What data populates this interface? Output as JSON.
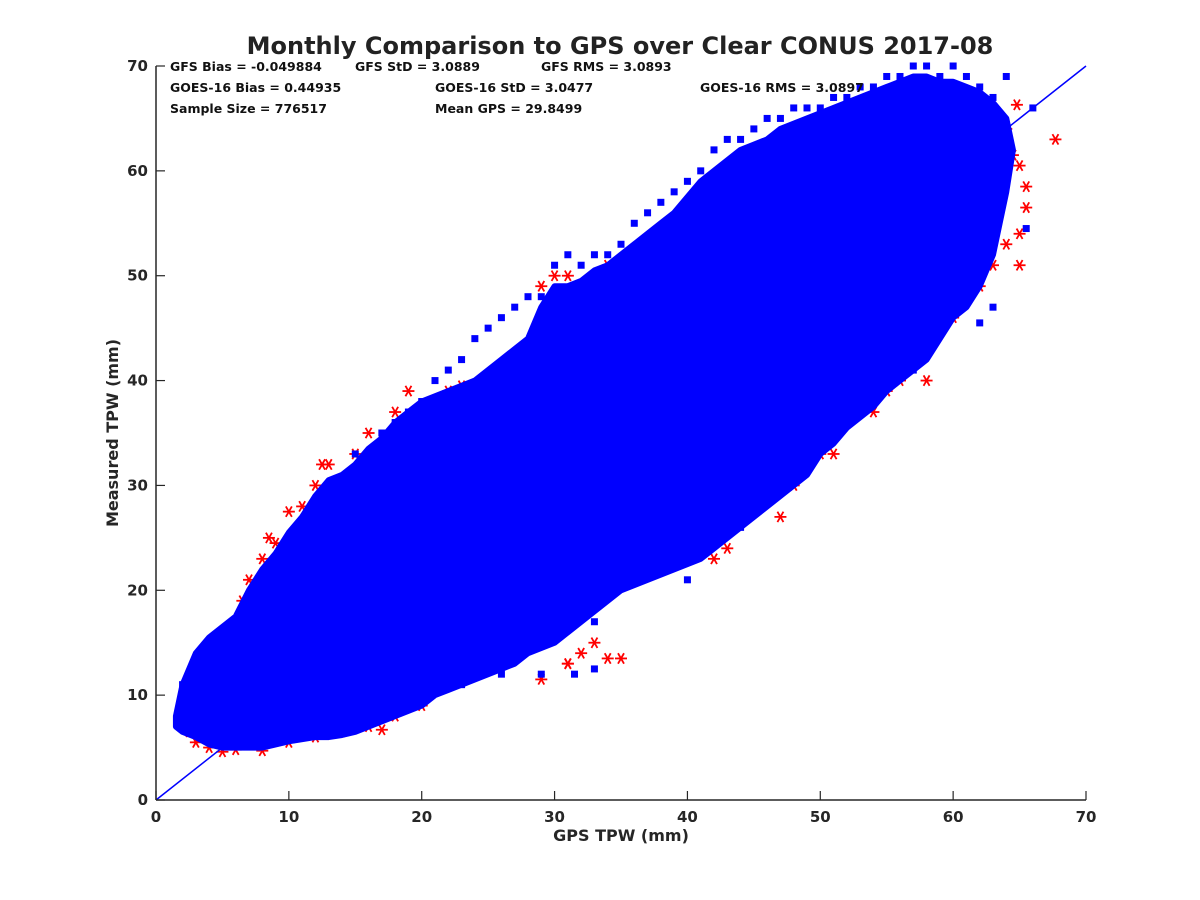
{
  "chart_data": {
    "type": "scatter",
    "title": "Monthly Comparison to GPS over Clear CONUS 2017-08",
    "xlabel": "GPS TPW (mm)",
    "ylabel": "Measured TPW (mm)",
    "xlim": [
      0,
      70
    ],
    "ylim": [
      0,
      70
    ],
    "xticks": [
      "0",
      "10",
      "20",
      "30",
      "40",
      "50",
      "60",
      "70"
    ],
    "yticks": [
      "0",
      "10",
      "20",
      "30",
      "40",
      "50",
      "60",
      "70"
    ],
    "grid": false,
    "reference_line": {
      "x": [
        0,
        70
      ],
      "y": [
        0,
        70
      ],
      "color": "#0000ff"
    },
    "stats": {
      "row1": [
        "GFS Bias = -0.049884",
        "GFS StD = 3.0889",
        "GFS RMS = 3.0893"
      ],
      "row2": [
        "GOES-16 Bias = 0.44935",
        "GOES-16 StD = 3.0477",
        "GOES-16 RMS = 3.0897"
      ],
      "row3": [
        "Sample Size = 776517",
        "Mean GPS = 29.8499"
      ]
    },
    "series": [
      {
        "marker": "asterisk",
        "color": "#ff0000",
        "points": [
          [
            2,
            7
          ],
          [
            2.5,
            6.5
          ],
          [
            3,
            5.5
          ],
          [
            4,
            5
          ],
          [
            5,
            4.6
          ],
          [
            6,
            4.8
          ],
          [
            8,
            4.7
          ],
          [
            10,
            5.5
          ],
          [
            12,
            6
          ],
          [
            14,
            6.5
          ],
          [
            16,
            7
          ],
          [
            17,
            6.7
          ],
          [
            18,
            8
          ],
          [
            20,
            9
          ],
          [
            22,
            11
          ],
          [
            24,
            12
          ],
          [
            26,
            13
          ],
          [
            28,
            14.5
          ],
          [
            30,
            16
          ],
          [
            31,
            13
          ],
          [
            32,
            14
          ],
          [
            33,
            15
          ],
          [
            34,
            13.5
          ],
          [
            35,
            13.5
          ],
          [
            29,
            11.5
          ],
          [
            31,
            13
          ],
          [
            29,
            21
          ],
          [
            31,
            22
          ],
          [
            33,
            23
          ],
          [
            35,
            24
          ],
          [
            36,
            21
          ],
          [
            38,
            23
          ],
          [
            40,
            24
          ],
          [
            41,
            26
          ],
          [
            42,
            27
          ],
          [
            42,
            23
          ],
          [
            43,
            24
          ],
          [
            44,
            28
          ],
          [
            45,
            28
          ],
          [
            46,
            29
          ],
          [
            47,
            27
          ],
          [
            48,
            30
          ],
          [
            49,
            32
          ],
          [
            50,
            33
          ],
          [
            51,
            33
          ],
          [
            52,
            36
          ],
          [
            53,
            37
          ],
          [
            54,
            37
          ],
          [
            55,
            39
          ],
          [
            56,
            40
          ],
          [
            57,
            42
          ],
          [
            58,
            40
          ],
          [
            59,
            45
          ],
          [
            60,
            46
          ],
          [
            61,
            48
          ],
          [
            62,
            49
          ],
          [
            63,
            51
          ],
          [
            64,
            53
          ],
          [
            65,
            54
          ],
          [
            65,
            51
          ],
          [
            65.5,
            56.5
          ],
          [
            65.5,
            58.5
          ],
          [
            65,
            60.5
          ],
          [
            64.5,
            61.5
          ],
          [
            64,
            64
          ],
          [
            63,
            66
          ],
          [
            62,
            66
          ],
          [
            64.8,
            66.3
          ],
          [
            67.7,
            63
          ],
          [
            2,
            9
          ],
          [
            3,
            12
          ],
          [
            4,
            14
          ],
          [
            5,
            15
          ],
          [
            6,
            17
          ],
          [
            6.5,
            19
          ],
          [
            7,
            21
          ],
          [
            8,
            23
          ],
          [
            8.5,
            25
          ],
          [
            9,
            24.5
          ],
          [
            10,
            27.5
          ],
          [
            11,
            28
          ],
          [
            12,
            30
          ],
          [
            12.5,
            32
          ],
          [
            13,
            32
          ],
          [
            13,
            29.5
          ],
          [
            14,
            30
          ],
          [
            15,
            33
          ],
          [
            16,
            35
          ],
          [
            18,
            37
          ],
          [
            19,
            39
          ],
          [
            20,
            37
          ],
          [
            21,
            38
          ],
          [
            22,
            39
          ],
          [
            23,
            39.5
          ],
          [
            24,
            39.5
          ],
          [
            25,
            40
          ],
          [
            26,
            41
          ],
          [
            27,
            41.5
          ],
          [
            28,
            43
          ],
          [
            29,
            49
          ],
          [
            30,
            50
          ],
          [
            31,
            50
          ],
          [
            32,
            48
          ],
          [
            33,
            49
          ],
          [
            34,
            51
          ],
          [
            35,
            50
          ],
          [
            36,
            51
          ],
          [
            37,
            49
          ]
        ]
      },
      {
        "marker": "square",
        "color": "#0000ff",
        "points": [
          [
            2,
            11
          ],
          [
            3,
            13
          ],
          [
            7,
            15
          ],
          [
            10,
            24
          ],
          [
            11,
            26
          ],
          [
            12,
            28
          ],
          [
            13,
            26
          ],
          [
            14,
            30
          ],
          [
            15,
            33
          ],
          [
            16,
            33
          ],
          [
            17,
            35
          ],
          [
            18,
            36
          ],
          [
            19,
            37
          ],
          [
            20,
            38
          ],
          [
            21,
            40
          ],
          [
            21.5,
            37
          ],
          [
            22,
            41
          ],
          [
            23,
            42
          ],
          [
            24,
            44
          ],
          [
            25,
            45
          ],
          [
            26,
            46
          ],
          [
            27,
            47
          ],
          [
            28,
            48
          ],
          [
            29,
            48
          ],
          [
            30,
            51
          ],
          [
            31,
            52
          ],
          [
            32,
            51
          ],
          [
            33,
            52
          ],
          [
            34,
            52
          ],
          [
            35,
            53
          ],
          [
            36,
            55
          ],
          [
            37,
            56
          ],
          [
            38,
            57
          ],
          [
            39,
            58
          ],
          [
            40,
            59
          ],
          [
            41,
            60
          ],
          [
            42,
            62
          ],
          [
            43,
            63
          ],
          [
            44,
            63
          ],
          [
            45,
            64
          ],
          [
            46,
            65
          ],
          [
            47,
            65
          ],
          [
            48,
            66
          ],
          [
            49,
            66
          ],
          [
            50,
            66
          ],
          [
            51,
            67
          ],
          [
            52,
            67
          ],
          [
            53,
            68
          ],
          [
            54,
            68
          ],
          [
            55,
            69
          ],
          [
            56,
            69
          ],
          [
            57,
            70
          ],
          [
            58,
            70
          ],
          [
            59,
            69
          ],
          [
            60,
            70
          ],
          [
            61,
            69
          ],
          [
            62,
            68
          ],
          [
            63,
            67
          ],
          [
            64,
            69
          ],
          [
            66,
            66
          ],
          [
            65.5,
            54.5
          ],
          [
            63,
            47
          ],
          [
            62,
            45.5
          ],
          [
            57,
            41
          ],
          [
            50,
            35
          ],
          [
            48,
            32
          ],
          [
            44,
            26
          ],
          [
            40,
            21
          ],
          [
            39,
            29
          ],
          [
            37,
            28
          ],
          [
            35,
            21
          ],
          [
            33,
            17
          ],
          [
            33,
            12.5
          ],
          [
            31.5,
            12
          ],
          [
            29,
            12
          ],
          [
            26,
            12
          ],
          [
            23,
            11
          ],
          [
            20,
            10
          ],
          [
            18,
            8.5
          ],
          [
            16,
            8
          ],
          [
            14,
            8
          ],
          [
            12,
            7
          ],
          [
            10,
            7
          ],
          [
            8,
            6
          ],
          [
            6,
            7
          ],
          [
            4,
            8
          ],
          [
            30,
            20
          ],
          [
            26,
            16
          ]
        ]
      }
    ],
    "envelope": {
      "color": "#0000ff",
      "upper": [
        [
          1.5,
          8
        ],
        [
          2,
          11
        ],
        [
          3,
          14
        ],
        [
          4,
          15.5
        ],
        [
          6,
          17.5
        ],
        [
          7,
          20
        ],
        [
          8,
          22
        ],
        [
          9,
          23.5
        ],
        [
          10,
          25.5
        ],
        [
          11,
          27
        ],
        [
          12,
          29
        ],
        [
          13,
          30.5
        ],
        [
          14,
          31
        ],
        [
          15,
          32
        ],
        [
          16,
          33.5
        ],
        [
          17,
          34.5
        ],
        [
          18,
          36
        ],
        [
          19,
          37
        ],
        [
          20,
          38
        ],
        [
          21,
          38.5
        ],
        [
          22,
          39
        ],
        [
          23,
          39.5
        ],
        [
          24,
          40
        ],
        [
          25,
          41
        ],
        [
          26,
          42
        ],
        [
          27,
          43
        ],
        [
          28,
          44
        ],
        [
          29,
          47
        ],
        [
          30,
          49
        ],
        [
          31,
          49
        ],
        [
          32,
          49.5
        ],
        [
          33,
          50.5
        ],
        [
          34,
          51
        ],
        [
          35,
          52
        ],
        [
          36,
          53
        ],
        [
          37,
          54
        ],
        [
          38,
          55
        ],
        [
          39,
          56
        ],
        [
          40,
          57.5
        ],
        [
          41,
          59
        ],
        [
          42,
          60
        ],
        [
          43,
          61
        ],
        [
          44,
          62
        ],
        [
          45,
          62.5
        ],
        [
          46,
          63
        ],
        [
          47,
          64
        ],
        [
          48,
          64.5
        ],
        [
          49,
          65
        ],
        [
          50,
          65.5
        ],
        [
          51,
          66
        ],
        [
          52,
          66.5
        ],
        [
          53,
          67
        ],
        [
          54,
          67.5
        ],
        [
          55,
          68
        ],
        [
          56,
          68.5
        ],
        [
          57,
          69
        ],
        [
          58,
          69
        ],
        [
          59,
          68.5
        ],
        [
          60,
          68.5
        ],
        [
          61,
          68
        ],
        [
          62,
          67.5
        ],
        [
          63,
          66.5
        ],
        [
          64,
          65
        ],
        [
          64.5,
          62
        ],
        [
          64,
          58
        ],
        [
          63.5,
          55
        ],
        [
          63,
          52
        ],
        [
          62,
          49
        ],
        [
          61,
          47
        ],
        [
          60,
          46
        ],
        [
          59,
          44
        ],
        [
          58,
          42
        ],
        [
          57,
          41
        ],
        [
          56,
          40
        ],
        [
          55,
          39
        ],
        [
          54,
          37.5
        ],
        [
          53,
          36.5
        ],
        [
          52,
          35.5
        ],
        [
          51,
          34
        ],
        [
          50,
          33
        ],
        [
          49,
          31
        ],
        [
          48,
          30
        ],
        [
          47,
          29
        ],
        [
          46,
          28
        ],
        [
          45,
          27
        ],
        [
          44,
          26
        ],
        [
          43,
          25
        ],
        [
          42,
          24
        ],
        [
          41,
          23
        ],
        [
          40,
          22.5
        ],
        [
          39,
          22
        ],
        [
          38,
          21.5
        ],
        [
          37,
          21
        ],
        [
          36,
          20.5
        ],
        [
          35,
          20
        ],
        [
          34,
          19
        ],
        [
          33,
          18
        ],
        [
          32,
          17
        ],
        [
          31,
          16
        ],
        [
          30,
          15
        ],
        [
          29,
          14.5
        ],
        [
          28,
          14
        ],
        [
          27,
          13
        ],
        [
          26,
          12.5
        ],
        [
          25,
          12
        ],
        [
          24,
          11.5
        ],
        [
          23,
          11
        ],
        [
          22,
          10.5
        ],
        [
          21,
          10
        ],
        [
          20,
          9
        ],
        [
          19,
          8.5
        ],
        [
          18,
          8
        ],
        [
          17,
          7.5
        ],
        [
          16,
          7
        ],
        [
          15,
          6.5
        ],
        [
          14,
          6.2
        ],
        [
          13,
          6
        ],
        [
          12,
          6
        ],
        [
          11,
          5.8
        ],
        [
          10,
          5.6
        ],
        [
          9,
          5.3
        ],
        [
          8,
          5
        ],
        [
          7,
          5
        ],
        [
          6,
          5
        ],
        [
          5,
          5
        ],
        [
          4,
          5.3
        ],
        [
          3,
          6
        ],
        [
          2,
          6.5
        ],
        [
          1.5,
          7
        ]
      ]
    }
  }
}
